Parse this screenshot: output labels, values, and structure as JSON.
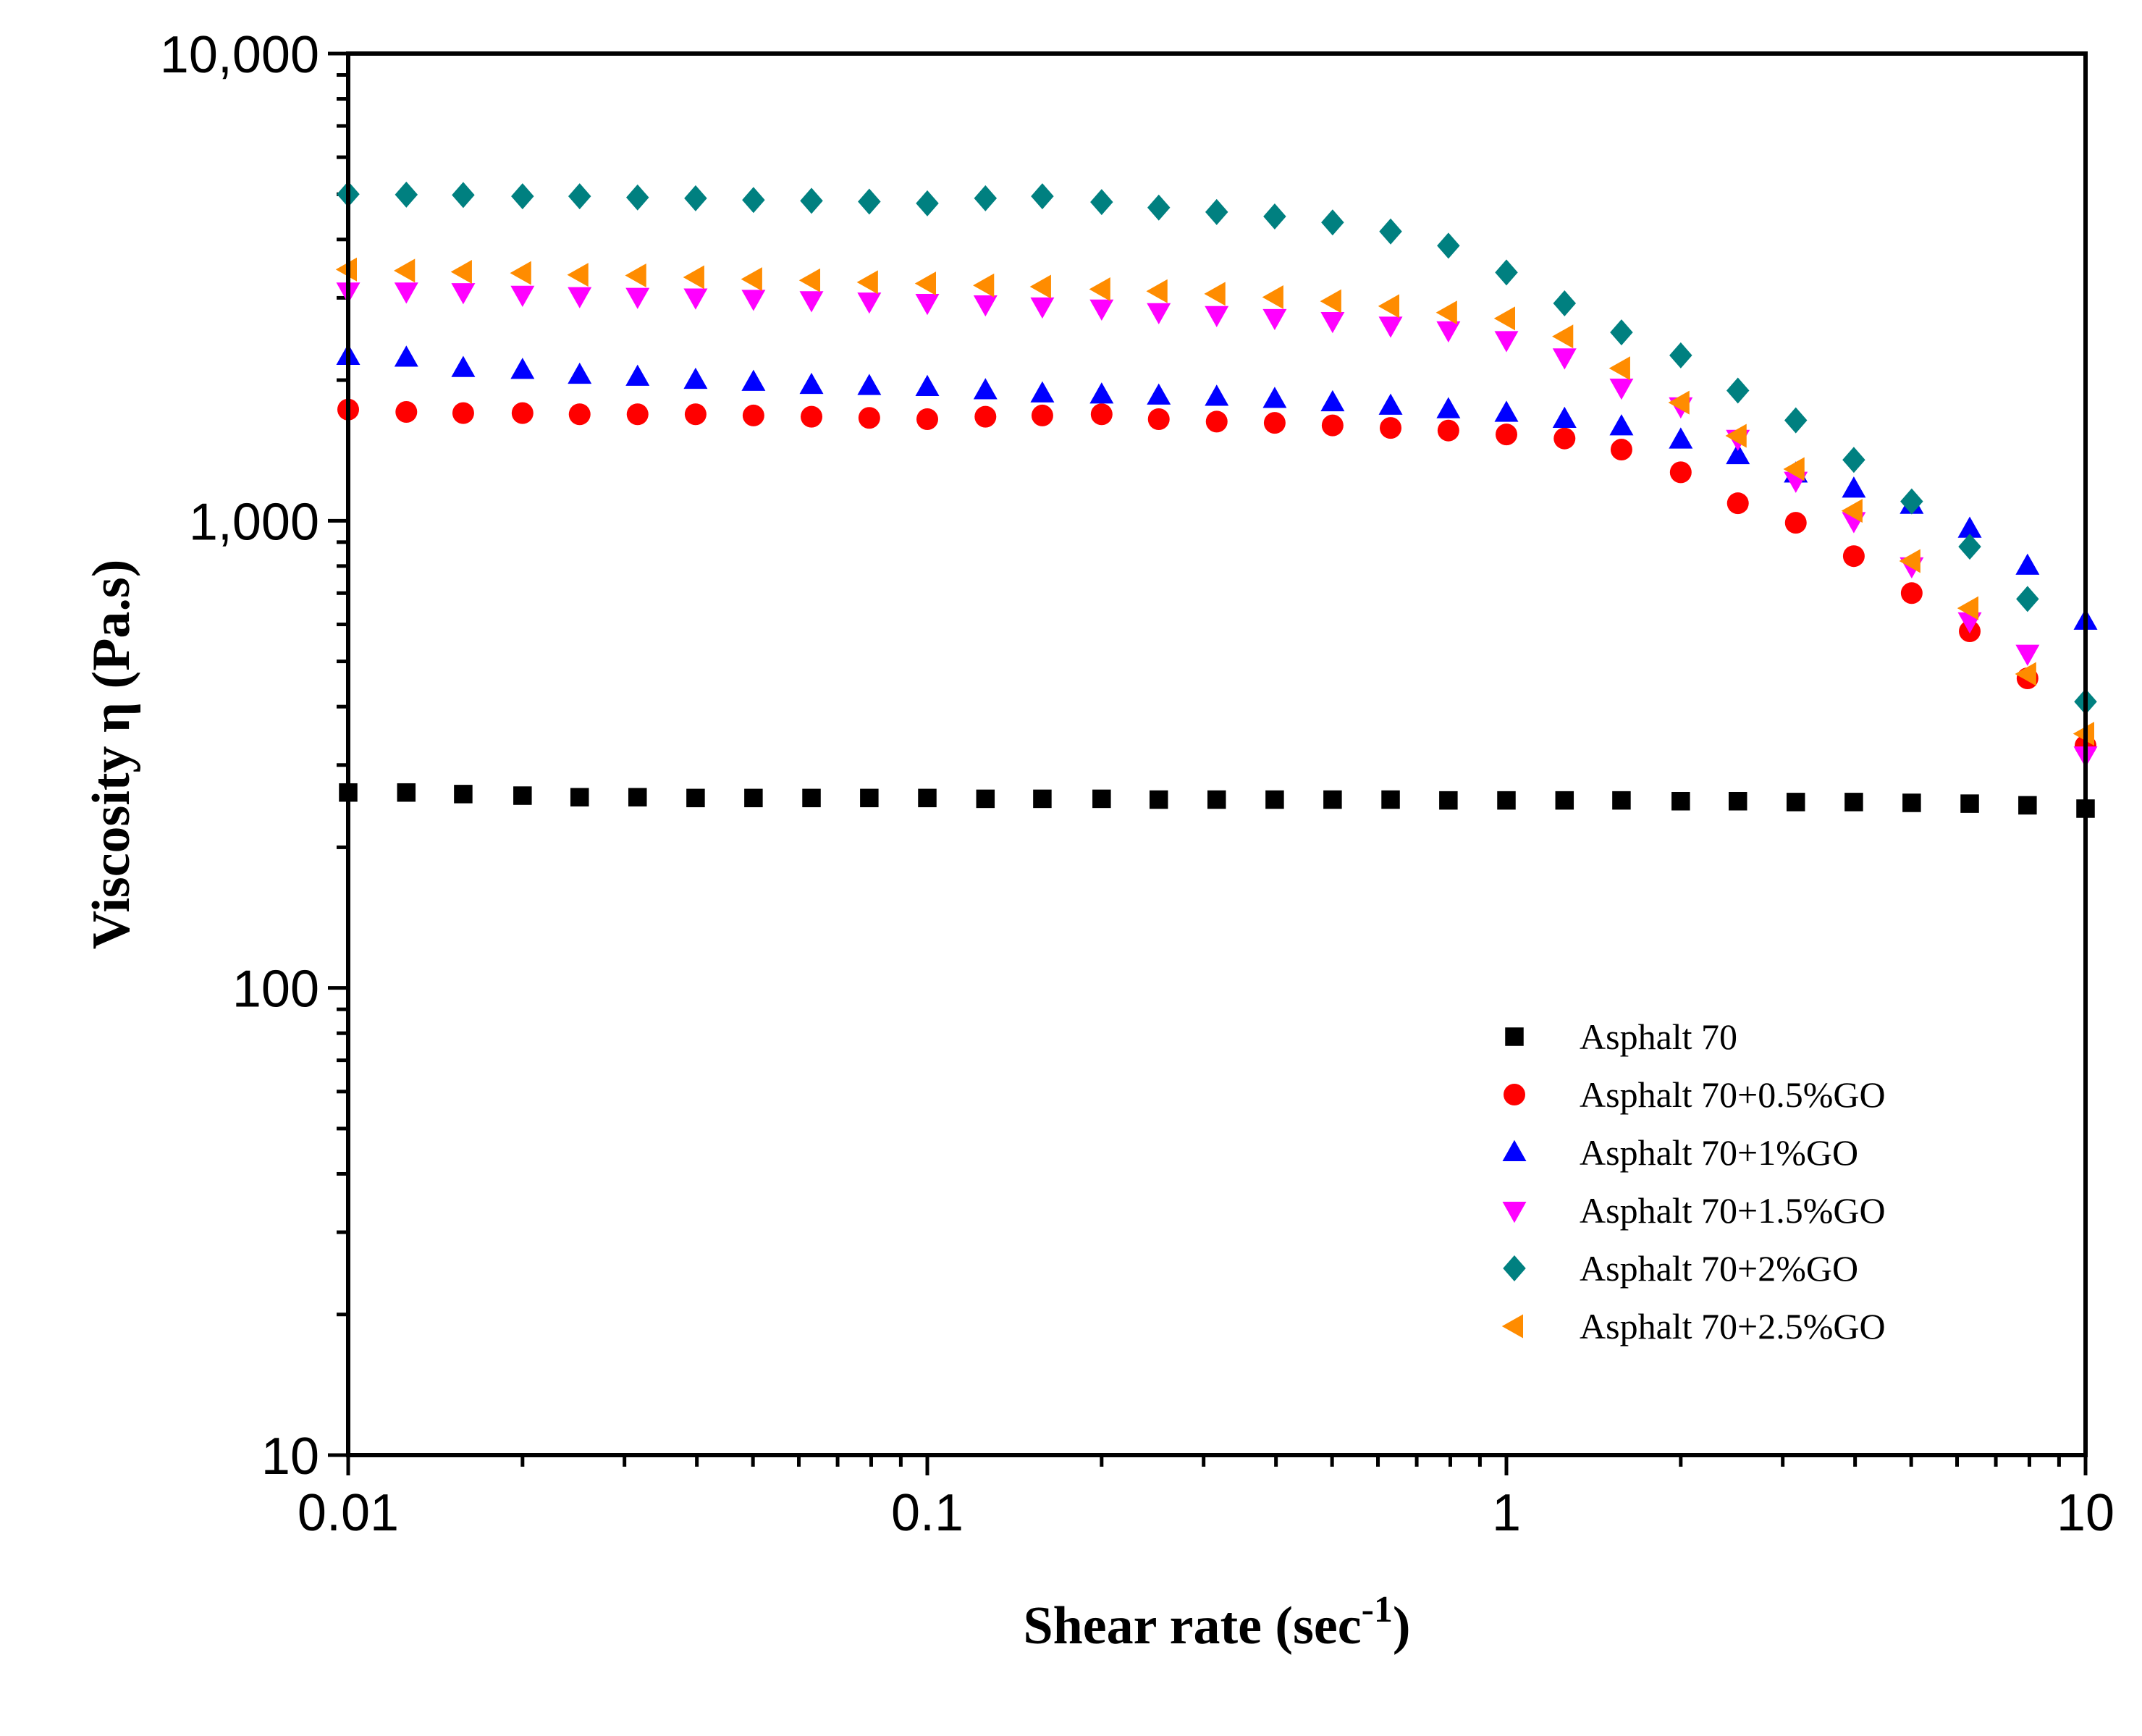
{
  "chart_data": {
    "type": "scatter",
    "xscale": "log",
    "yscale": "log",
    "xlabel": "Shear rate (sec",
    "xlabel_sup": "-1",
    "xlabel_suffix": ")",
    "ylabel": "Viscosity η (Pa.s)",
    "xlim": [
      0.01,
      10
    ],
    "ylim": [
      10,
      10000
    ],
    "grid": false,
    "legend_position": "lower-right",
    "x_ticks": [
      {
        "value": 0.01,
        "label": "0.01"
      },
      {
        "value": 0.1,
        "label": "0.1"
      },
      {
        "value": 1,
        "label": "1"
      },
      {
        "value": 10,
        "label": "10"
      }
    ],
    "y_ticks": [
      {
        "value": 10,
        "label": "10"
      },
      {
        "value": 100,
        "label": "100"
      },
      {
        "value": 1000,
        "label": "1,000"
      },
      {
        "value": 10000,
        "label": "10,000"
      }
    ],
    "x": [
      0.01,
      0.0126,
      0.0158,
      0.02,
      0.0251,
      0.0316,
      0.0398,
      0.0501,
      0.0631,
      0.0794,
      0.1,
      0.126,
      0.158,
      0.2,
      0.251,
      0.316,
      0.398,
      0.501,
      0.631,
      0.794,
      1,
      1.26,
      1.58,
      2,
      2.51,
      3.16,
      3.98,
      5.01,
      6.31,
      7.94,
      10
    ],
    "series": [
      {
        "name": "Asphalt 70",
        "marker": "square",
        "color": "#000000",
        "values": [
          262,
          262,
          260,
          258,
          256,
          256,
          255,
          255,
          255,
          255,
          255,
          254,
          254,
          254,
          253,
          253,
          253,
          253,
          253,
          252,
          252,
          252,
          252,
          251,
          251,
          250,
          250,
          249,
          248,
          246,
          242
        ]
      },
      {
        "name": "Asphalt 70+0.5%GO",
        "marker": "circle",
        "color": "#ff0000",
        "values": [
          1730,
          1710,
          1700,
          1700,
          1690,
          1690,
          1690,
          1680,
          1670,
          1660,
          1650,
          1670,
          1680,
          1690,
          1650,
          1630,
          1620,
          1600,
          1580,
          1560,
          1530,
          1500,
          1420,
          1270,
          1090,
          990,
          840,
          700,
          580,
          460,
          330
        ]
      },
      {
        "name": "Asphalt 70+1%GO",
        "marker": "triangle-up",
        "color": "#0000ff",
        "values": [
          2250,
          2230,
          2120,
          2100,
          2050,
          2030,
          2000,
          1980,
          1950,
          1940,
          1930,
          1900,
          1870,
          1860,
          1850,
          1840,
          1820,
          1790,
          1760,
          1730,
          1700,
          1650,
          1590,
          1490,
          1380,
          1260,
          1170,
          1080,
          960,
          800,
          610
        ]
      },
      {
        "name": "Asphalt 70+1.5%GO",
        "marker": "triangle-down",
        "color": "#ff00ff",
        "values": [
          3100,
          3100,
          3090,
          3050,
          3030,
          3020,
          3010,
          2990,
          2970,
          2950,
          2930,
          2910,
          2880,
          2850,
          2800,
          2760,
          2720,
          2680,
          2620,
          2560,
          2440,
          2240,
          1930,
          1760,
          1500,
          1220,
          1000,
          800,
          610,
          520,
          315
        ]
      },
      {
        "name": "Asphalt 70+2%GO",
        "marker": "diamond",
        "color": "#008080",
        "values": [
          5000,
          4990,
          4980,
          4950,
          4950,
          4920,
          4900,
          4860,
          4840,
          4820,
          4780,
          4900,
          4950,
          4810,
          4680,
          4580,
          4480,
          4350,
          4160,
          3880,
          3400,
          2920,
          2530,
          2260,
          1900,
          1640,
          1350,
          1100,
          880,
          680,
          410
        ]
      },
      {
        "name": "Asphalt 70+2.5%GO",
        "marker": "triangle-left",
        "color": "#ff8c00",
        "values": [
          3450,
          3430,
          3410,
          3390,
          3360,
          3350,
          3320,
          3290,
          3270,
          3240,
          3220,
          3190,
          3170,
          3130,
          3100,
          3060,
          3010,
          2950,
          2880,
          2790,
          2710,
          2480,
          2120,
          1790,
          1520,
          1290,
          1050,
          820,
          650,
          470,
          350
        ]
      }
    ]
  }
}
